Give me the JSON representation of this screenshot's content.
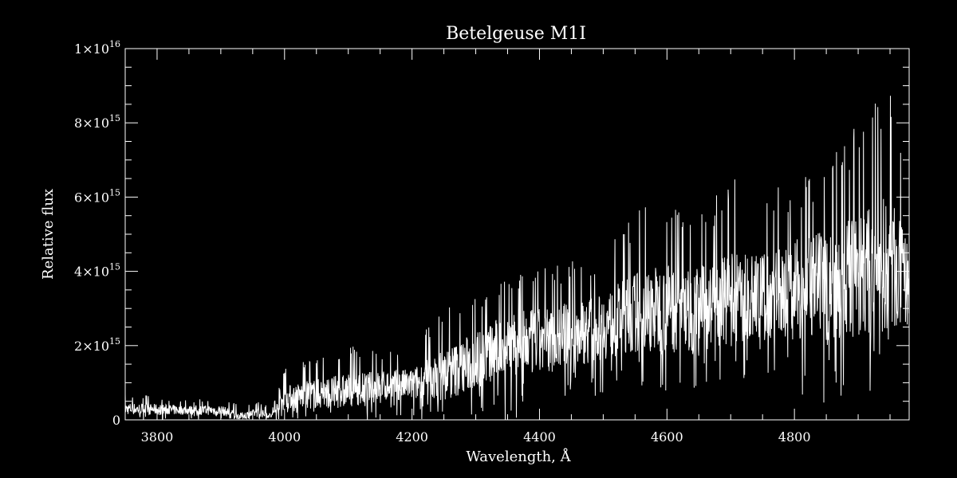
{
  "chart_data": {
    "type": "line",
    "title": "Betelgeuse   M1I",
    "xlabel": "Wavelength, Å",
    "ylabel": "Relative flux",
    "xlim": [
      3750,
      4980
    ],
    "ylim": [
      0,
      1e+16
    ],
    "x_ticks": [
      {
        "value": 3800,
        "label": "3800"
      },
      {
        "value": 4000,
        "label": "4000"
      },
      {
        "value": 4200,
        "label": "4200"
      },
      {
        "value": 4400,
        "label": "4400"
      },
      {
        "value": 4600,
        "label": "4600"
      },
      {
        "value": 4800,
        "label": "4800"
      }
    ],
    "y_ticks": [
      {
        "value": 0,
        "label": "0",
        "mantissa": "",
        "exponent": ""
      },
      {
        "value": 2000000000000000.0,
        "label": "2×10^15",
        "mantissa": "2×10",
        "exponent": "15"
      },
      {
        "value": 4000000000000000.0,
        "label": "4×10^15",
        "mantissa": "4×10",
        "exponent": "15"
      },
      {
        "value": 6000000000000000.0,
        "label": "6×10^15",
        "mantissa": "6×10",
        "exponent": "15"
      },
      {
        "value": 8000000000000000.0,
        "label": "8×10^15",
        "mantissa": "8×10",
        "exponent": "15"
      },
      {
        "value": 1e+16,
        "label": "1×10^16",
        "mantissa": "1×10",
        "exponent": "16"
      }
    ],
    "grid": false,
    "series": [
      {
        "color": "#ffffff",
        "x": [
          3750,
          3800,
          3850,
          3900,
          3930,
          3960,
          3980,
          4000,
          4050,
          4100,
          4150,
          4200,
          4250,
          4300,
          4350,
          4400,
          4450,
          4500,
          4550,
          4600,
          4650,
          4700,
          4750,
          4800,
          4850,
          4900,
          4950,
          4980
        ],
        "y_mean": [
          300000000000000.0,
          280000000000000.0,
          260000000000000.0,
          260000000000000.0,
          100000000000000.0,
          200000000000000.0,
          100000000000000.0,
          600000000000000.0,
          700000000000000.0,
          800000000000000.0,
          900000000000000.0,
          950000000000000.0,
          1200000000000000.0,
          1600000000000000.0,
          2000000000000000.0,
          2100000000000000.0,
          2300000000000000.0,
          2500000000000000.0,
          2900000000000000.0,
          3000000000000000.0,
          3000000000000000.0,
          3200000000000000.0,
          3400000000000000.0,
          3500000000000000.0,
          3600000000000000.0,
          3900000000000000.0,
          4200000000000000.0,
          3600000000000000.0
        ],
        "y_max": [
          700000000000000.0,
          650000000000000.0,
          550000000000000.0,
          600000000000000.0,
          400000000000000.0,
          500000000000000.0,
          300000000000000.0,
          1400000000000000.0,
          1800000000000000.0,
          2000000000000000.0,
          1900000000000000.0,
          1900000000000000.0,
          3200000000000000.0,
          3500000000000000.0,
          3900000000000000.0,
          4100000000000000.0,
          4300000000000000.0,
          4600000000000000.0,
          5700000000000000.0,
          6200000000000000.0,
          5600000000000000.0,
          6600000000000000.0,
          6000000000000000.0,
          6600000000000000.0,
          6800000000000000.0,
          8100000000000000.0,
          8900000000000000.0,
          6000000000000000.0
        ],
        "y_min": [
          0,
          0,
          0,
          0,
          0,
          0,
          0,
          0,
          0,
          0,
          0,
          0,
          0,
          0,
          0,
          100000000000000.0,
          400000000000000.0,
          700000000000000.0,
          800000000000000.0,
          700000000000000.0,
          700000000000000.0,
          900000000000000.0,
          1200000000000000.0,
          600000000000000.0,
          200000000000000.0,
          600000000000000.0,
          400000000000000.0,
          1500000000000000.0
        ]
      }
    ]
  }
}
